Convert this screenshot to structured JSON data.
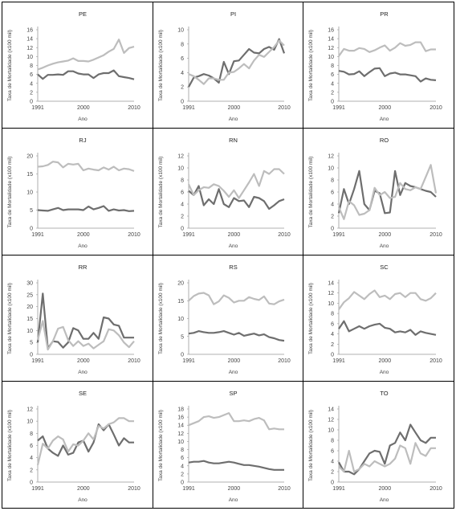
{
  "chart_data": [
    {
      "type": "line",
      "title": "PE",
      "xlabel": "Ano",
      "ylabel": "Taxa de Mortalidade (x100 mil)",
      "ylim": [
        0,
        16
      ],
      "yticks": [
        0,
        2,
        4,
        6,
        8,
        10,
        12,
        14,
        16
      ],
      "xticks": [
        1991,
        2000,
        2010
      ],
      "x": [
        1991,
        1992,
        1993,
        1994,
        1995,
        1996,
        1997,
        1998,
        1999,
        2000,
        2001,
        2002,
        2003,
        2004,
        2005,
        2006,
        2007,
        2008,
        2009,
        2010
      ],
      "series": [
        {
          "color": "#6e6e6e",
          "values": [
            6.0,
            5.0,
            5.9,
            5.9,
            6.0,
            5.9,
            6.7,
            6.7,
            6.2,
            6.0,
            6.0,
            5.2,
            6.0,
            6.3,
            6.3,
            6.9,
            5.6,
            5.4,
            5.2,
            4.9
          ]
        },
        {
          "color": "#bdbdbd",
          "values": [
            7.1,
            7.5,
            8.0,
            8.4,
            8.7,
            8.9,
            9.1,
            9.6,
            9.0,
            9.0,
            8.9,
            9.3,
            9.8,
            10.3,
            11.1,
            11.7,
            13.8,
            10.8,
            11.9,
            12.2
          ]
        }
      ]
    },
    {
      "type": "line",
      "title": "PI",
      "xlabel": "Ano",
      "ylabel": "Taxa de Mortalidade (x100 mil)",
      "ylim": [
        0,
        10
      ],
      "yticks": [
        0,
        2,
        4,
        6,
        8,
        10
      ],
      "xticks": [
        1991,
        2000,
        2010
      ],
      "x": [
        1991,
        1992,
        1993,
        1994,
        1995,
        1996,
        1997,
        1998,
        1999,
        2000,
        2001,
        2002,
        2003,
        2004,
        2005,
        2006,
        2007,
        2008,
        2009,
        2010
      ],
      "series": [
        {
          "color": "#6e6e6e",
          "values": [
            2.0,
            3.3,
            3.5,
            3.8,
            3.6,
            3.2,
            2.6,
            5.5,
            3.8,
            5.6,
            5.7,
            6.5,
            7.3,
            6.8,
            6.7,
            7.3,
            7.6,
            7.2,
            8.7,
            6.7
          ]
        },
        {
          "color": "#bdbdbd",
          "values": [
            3.8,
            3.5,
            3.0,
            2.4,
            3.2,
            3.2,
            3.0,
            3.0,
            4.0,
            4.1,
            4.6,
            5.2,
            4.6,
            5.7,
            6.5,
            6.2,
            6.9,
            7.6,
            8.5,
            7.8
          ]
        }
      ]
    },
    {
      "type": "line",
      "title": "PR",
      "xlabel": "Ano",
      "ylabel": "Taxa de Mortalidade (x100 mil)",
      "ylim": [
        0,
        16
      ],
      "yticks": [
        0,
        2,
        4,
        6,
        8,
        10,
        12,
        14,
        16
      ],
      "xticks": [
        1991,
        2000,
        2010
      ],
      "x": [
        1991,
        1992,
        1993,
        1994,
        1995,
        1996,
        1997,
        1998,
        1999,
        2000,
        2001,
        2002,
        2003,
        2004,
        2005,
        2006,
        2007,
        2008,
        2009,
        2010
      ],
      "series": [
        {
          "color": "#6e6e6e",
          "values": [
            6.8,
            6.6,
            6.0,
            6.1,
            6.7,
            5.6,
            6.5,
            7.3,
            7.4,
            5.6,
            6.2,
            6.4,
            6.0,
            6.0,
            5.8,
            5.6,
            4.4,
            5.1,
            4.8,
            4.7
          ]
        },
        {
          "color": "#bdbdbd",
          "values": [
            10.1,
            11.7,
            11.3,
            11.3,
            11.9,
            11.7,
            11.0,
            11.4,
            12.0,
            12.5,
            11.3,
            12.0,
            13.0,
            12.4,
            12.6,
            13.2,
            13.2,
            11.2,
            11.6,
            11.6
          ]
        }
      ]
    },
    {
      "type": "line",
      "title": "RJ",
      "xlabel": "Ano",
      "ylabel": "Taxa de Mortalidade (x100 mil)",
      "ylim": [
        0,
        20
      ],
      "yticks": [
        0,
        5,
        10,
        15,
        20
      ],
      "xticks": [
        1991,
        2000,
        2010
      ],
      "x": [
        1991,
        1992,
        1993,
        1994,
        1995,
        1996,
        1997,
        1998,
        1999,
        2000,
        2001,
        2002,
        2003,
        2004,
        2005,
        2006,
        2007,
        2008,
        2009,
        2010
      ],
      "series": [
        {
          "color": "#6e6e6e",
          "values": [
            5.0,
            4.9,
            4.8,
            5.2,
            5.6,
            5.0,
            5.2,
            5.2,
            5.2,
            5.0,
            6.0,
            5.2,
            5.6,
            6.1,
            4.8,
            5.2,
            4.9,
            5.0,
            4.7,
            4.8
          ]
        },
        {
          "color": "#bdbdbd",
          "values": [
            17.0,
            17.1,
            17.5,
            18.4,
            18.2,
            16.8,
            17.8,
            17.6,
            17.8,
            16.0,
            16.5,
            16.2,
            16.0,
            16.8,
            16.2,
            17.0,
            16.0,
            16.5,
            16.3,
            15.8
          ]
        }
      ]
    },
    {
      "type": "line",
      "title": "RN",
      "xlabel": "Ano",
      "ylabel": "Taxa de Mortalidade (x100 mil)",
      "ylim": [
        0,
        12
      ],
      "yticks": [
        0,
        2,
        4,
        6,
        8,
        10,
        12
      ],
      "xticks": [
        1991,
        2000,
        2010
      ],
      "x": [
        1991,
        1992,
        1993,
        1994,
        1995,
        1996,
        1997,
        1998,
        1999,
        2000,
        2001,
        2002,
        2003,
        2004,
        2005,
        2006,
        2007,
        2008,
        2009,
        2010
      ],
      "series": [
        {
          "color": "#6e6e6e",
          "values": [
            6.2,
            5.5,
            7.0,
            3.8,
            4.8,
            4.0,
            6.5,
            4.0,
            3.5,
            5.0,
            4.5,
            4.6,
            3.5,
            5.2,
            5.0,
            4.5,
            3.2,
            3.8,
            4.5,
            4.8
          ]
        },
        {
          "color": "#bdbdbd",
          "values": [
            7.3,
            5.5,
            6.3,
            6.8,
            6.7,
            7.3,
            7.0,
            6.2,
            5.2,
            6.3,
            5.0,
            6.3,
            7.6,
            9.0,
            7.0,
            9.5,
            9.0,
            9.8,
            9.8,
            9.0
          ]
        }
      ]
    },
    {
      "type": "line",
      "title": "RO",
      "xlabel": "Ano",
      "ylabel": "Taxa de Mortalidade (x100 mil)",
      "ylim": [
        0,
        12
      ],
      "yticks": [
        0,
        2,
        4,
        6,
        8,
        10,
        12
      ],
      "xticks": [
        1991,
        2000,
        2010
      ],
      "x": [
        1991,
        1992,
        1993,
        1994,
        1995,
        1996,
        1997,
        1998,
        1999,
        2000,
        2001,
        2002,
        2003,
        2004,
        2005,
        2006,
        2007,
        2008,
        2009,
        2010
      ],
      "series": [
        {
          "color": "#6e6e6e",
          "values": [
            2.5,
            6.5,
            4.0,
            6.5,
            9.5,
            4.0,
            3.0,
            6.2,
            5.8,
            2.5,
            2.6,
            9.5,
            5.5,
            7.5,
            7.0,
            6.8,
            6.5,
            6.2,
            6.0,
            5.2
          ]
        },
        {
          "color": "#bdbdbd",
          "values": [
            3.5,
            1.5,
            4.5,
            3.8,
            2.2,
            2.4,
            3.0,
            6.7,
            5.5,
            6.0,
            5.0,
            5.2,
            7.5,
            6.5,
            6.3,
            6.8,
            6.5,
            8.5,
            10.5,
            5.8
          ]
        }
      ]
    },
    {
      "type": "line",
      "title": "RR",
      "xlabel": "Ano",
      "ylabel": "Taxa de Mortalidade (x100 mil)",
      "ylim": [
        0,
        30
      ],
      "yticks": [
        0,
        5,
        10,
        15,
        20,
        25,
        30
      ],
      "xticks": [
        1991,
        2000,
        2010
      ],
      "x": [
        1991,
        1992,
        1993,
        1994,
        1995,
        1996,
        1997,
        1998,
        1999,
        2000,
        2001,
        2002,
        2003,
        2004,
        2005,
        2006,
        2007,
        2008,
        2009,
        2010
      ],
      "series": [
        {
          "color": "#6e6e6e",
          "values": [
            5.0,
            25.5,
            2.5,
            5.5,
            5.2,
            2.8,
            5.0,
            11.0,
            10.0,
            6.5,
            6.5,
            9.0,
            6.5,
            15.5,
            15.0,
            12.5,
            12.0,
            7.0,
            7.0,
            7.0
          ]
        },
        {
          "color": "#bdbdbd",
          "values": [
            6.0,
            14.0,
            2.0,
            5.5,
            10.8,
            11.5,
            6.0,
            3.5,
            5.5,
            3.5,
            4.5,
            2.5,
            4.0,
            5.5,
            10.5,
            10.0,
            8.0,
            5.0,
            3.0,
            5.5
          ]
        }
      ]
    },
    {
      "type": "line",
      "title": "RS",
      "xlabel": "Ano",
      "ylabel": "Taxa de Mortalidade (x100 mil)",
      "ylim": [
        0,
        20
      ],
      "yticks": [
        0,
        5,
        10,
        15,
        20
      ],
      "xticks": [
        1991,
        2000,
        2010
      ],
      "x": [
        1991,
        1992,
        1993,
        1994,
        1995,
        1996,
        1997,
        1998,
        1999,
        2000,
        2001,
        2002,
        2003,
        2004,
        2005,
        2006,
        2007,
        2008,
        2009,
        2010
      ],
      "series": [
        {
          "color": "#6e6e6e",
          "values": [
            5.8,
            6.0,
            6.5,
            6.2,
            6.0,
            6.0,
            6.2,
            6.5,
            6.0,
            5.5,
            6.0,
            5.2,
            5.5,
            5.8,
            5.3,
            5.6,
            4.8,
            4.5,
            4.0,
            3.8
          ]
        },
        {
          "color": "#bdbdbd",
          "values": [
            15.0,
            16.3,
            17.0,
            17.2,
            16.5,
            14.0,
            14.8,
            16.5,
            15.8,
            14.5,
            15.0,
            15.0,
            16.0,
            15.5,
            15.2,
            16.2,
            14.2,
            14.0,
            14.8,
            15.3
          ]
        }
      ]
    },
    {
      "type": "line",
      "title": "SC",
      "xlabel": "Ano",
      "ylabel": "Taxa de Mortalidade (x100 mil)",
      "ylim": [
        0,
        14
      ],
      "yticks": [
        0,
        2,
        4,
        6,
        8,
        10,
        12,
        14
      ],
      "xticks": [
        1991,
        2000,
        2010
      ],
      "x": [
        1991,
        1992,
        1993,
        1994,
        1995,
        1996,
        1997,
        1998,
        1999,
        2000,
        2001,
        2002,
        2003,
        2004,
        2005,
        2006,
        2007,
        2008,
        2009,
        2010
      ],
      "series": [
        {
          "color": "#6e6e6e",
          "values": [
            5.0,
            6.5,
            4.5,
            5.0,
            5.5,
            5.0,
            5.5,
            5.8,
            6.0,
            5.2,
            5.0,
            4.3,
            4.5,
            4.3,
            4.8,
            3.8,
            4.5,
            4.2,
            4.0,
            3.8
          ]
        },
        {
          "color": "#bdbdbd",
          "values": [
            8.8,
            10.2,
            11.0,
            12.2,
            11.5,
            10.8,
            11.8,
            12.5,
            11.2,
            11.5,
            10.8,
            11.8,
            12.0,
            11.2,
            12.0,
            12.0,
            10.8,
            10.5,
            11.0,
            12.0
          ]
        }
      ]
    },
    {
      "type": "line",
      "title": "SE",
      "xlabel": "Ano",
      "ylabel": "Taxa de Mortalidade (x100 mil)",
      "ylim": [
        0,
        12
      ],
      "yticks": [
        0,
        2,
        4,
        6,
        8,
        10,
        12
      ],
      "xticks": [
        1991,
        2000,
        2010
      ],
      "x": [
        1991,
        1992,
        1993,
        1994,
        1995,
        1996,
        1997,
        1998,
        1999,
        2000,
        2001,
        2002,
        2003,
        2004,
        2005,
        2006,
        2007,
        2008,
        2009,
        2010
      ],
      "series": [
        {
          "color": "#6e6e6e",
          "values": [
            6.8,
            7.5,
            5.5,
            4.8,
            4.3,
            6.0,
            4.5,
            4.8,
            6.5,
            6.8,
            5.0,
            6.5,
            9.5,
            8.5,
            9.5,
            7.8,
            6.0,
            7.2,
            6.5,
            6.5
          ]
        },
        {
          "color": "#bdbdbd",
          "values": [
            2.8,
            6.3,
            5.5,
            6.8,
            7.5,
            7.0,
            5.0,
            6.2,
            6.0,
            6.8,
            8.0,
            7.0,
            9.2,
            8.8,
            9.5,
            9.8,
            10.5,
            10.5,
            10.0,
            10.0
          ]
        }
      ]
    },
    {
      "type": "line",
      "title": "SP",
      "xlabel": "Ano",
      "ylabel": "Taxa de Mortalidade (x100 mil)",
      "ylim": [
        0,
        18
      ],
      "yticks": [
        0,
        2,
        4,
        6,
        8,
        10,
        12,
        14,
        16,
        18
      ],
      "xticks": [
        1991,
        2000,
        2010
      ],
      "x": [
        1991,
        1992,
        1993,
        1994,
        1995,
        1996,
        1997,
        1998,
        1999,
        2000,
        2001,
        2002,
        2003,
        2004,
        2005,
        2006,
        2007,
        2008,
        2009,
        2010
      ],
      "series": [
        {
          "color": "#6e6e6e",
          "values": [
            4.8,
            5.0,
            5.0,
            5.2,
            4.8,
            4.6,
            4.6,
            4.8,
            5.0,
            4.8,
            4.5,
            4.2,
            4.2,
            4.0,
            3.8,
            3.5,
            3.2,
            3.0,
            3.0,
            3.0
          ]
        },
        {
          "color": "#bdbdbd",
          "values": [
            14.0,
            14.5,
            15.0,
            16.0,
            16.2,
            15.8,
            16.0,
            16.5,
            17.0,
            15.0,
            15.0,
            15.2,
            15.0,
            15.5,
            15.8,
            15.2,
            13.0,
            13.2,
            13.0,
            13.0
          ]
        }
      ]
    },
    {
      "type": "line",
      "title": "TO",
      "xlabel": "Ano",
      "ylabel": "Taxa de Mortalidade (x100 mil)",
      "ylim": [
        0,
        14
      ],
      "yticks": [
        0,
        2,
        4,
        6,
        8,
        10,
        12,
        14
      ],
      "xticks": [
        1991,
        2000,
        2010
      ],
      "x": [
        1991,
        1992,
        1993,
        1994,
        1995,
        1996,
        1997,
        1998,
        1999,
        2000,
        2001,
        2002,
        2003,
        2004,
        2005,
        2006,
        2007,
        2008,
        2009,
        2010
      ],
      "series": [
        {
          "color": "#6e6e6e",
          "values": [
            3.8,
            2.0,
            2.0,
            1.5,
            2.5,
            4.0,
            5.5,
            6.0,
            5.8,
            3.5,
            7.0,
            7.5,
            9.5,
            8.0,
            11.0,
            9.5,
            8.0,
            7.5,
            8.5,
            8.5
          ]
        },
        {
          "color": "#bdbdbd",
          "values": [
            3.0,
            2.0,
            6.0,
            2.0,
            2.5,
            3.5,
            3.0,
            4.0,
            3.5,
            3.0,
            3.5,
            4.5,
            7.0,
            6.5,
            3.5,
            7.5,
            5.5,
            5.0,
            6.5,
            6.5
          ]
        }
      ]
    }
  ]
}
